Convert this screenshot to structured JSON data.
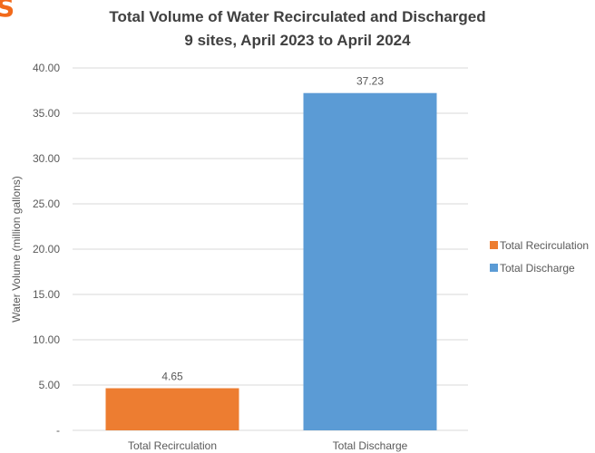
{
  "logo_glyph": "S",
  "colors": {
    "recirculation": "#ED7D31",
    "discharge": "#5B9BD5",
    "grid": "#d9d9d9",
    "text": "#595959",
    "title": "#404040",
    "logo": "#F26A1B"
  },
  "chart_data": {
    "type": "bar",
    "title": "Total Volume of Water Recirculated and Discharged",
    "subtitle": "9 sites, April 2023 to April 2024",
    "xlabel": "",
    "ylabel": "Water Volume (million gallons)",
    "categories": [
      "Total Recirculation",
      "Total Discharge"
    ],
    "values": [
      4.65,
      37.23
    ],
    "value_labels": [
      "4.65",
      "37.23"
    ],
    "ylim": [
      0,
      40
    ],
    "yticks": [
      "-",
      "5.00",
      "10.00",
      "15.00",
      "20.00",
      "25.00",
      "30.00",
      "35.00",
      "40.00"
    ],
    "grid": true,
    "legend": {
      "placement": "right",
      "entries": [
        "Total Recirculation",
        "Total Discharge"
      ]
    }
  }
}
